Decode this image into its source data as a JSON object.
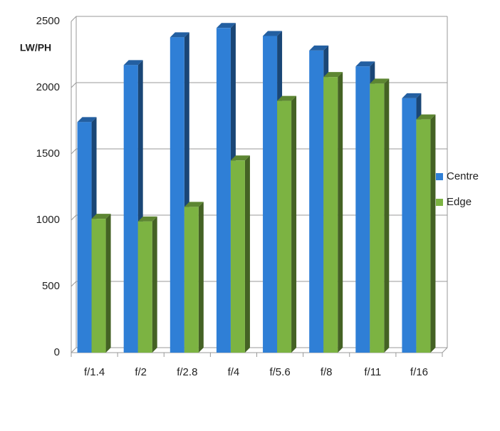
{
  "chart_data": {
    "type": "bar3d",
    "y_label": "LW/PH",
    "categories": [
      "f/1.4",
      "f/2",
      "f/2.8",
      "f/4",
      "f/5.6",
      "f/8",
      "f/11",
      "f/16"
    ],
    "series": [
      {
        "name": "Centre",
        "color": "#2f7fd6",
        "values": [
          1740,
          2170,
          2380,
          2450,
          2390,
          2280,
          2160,
          1920
        ]
      },
      {
        "name": "Edge",
        "color": "#7cb342",
        "values": [
          1010,
          990,
          1100,
          1450,
          1900,
          2080,
          2030,
          1760
        ]
      }
    ],
    "ylim": [
      0,
      2500
    ],
    "yticks": [
      0,
      500,
      1000,
      1500,
      2000,
      2500
    ],
    "grid": true,
    "legend": "right"
  }
}
